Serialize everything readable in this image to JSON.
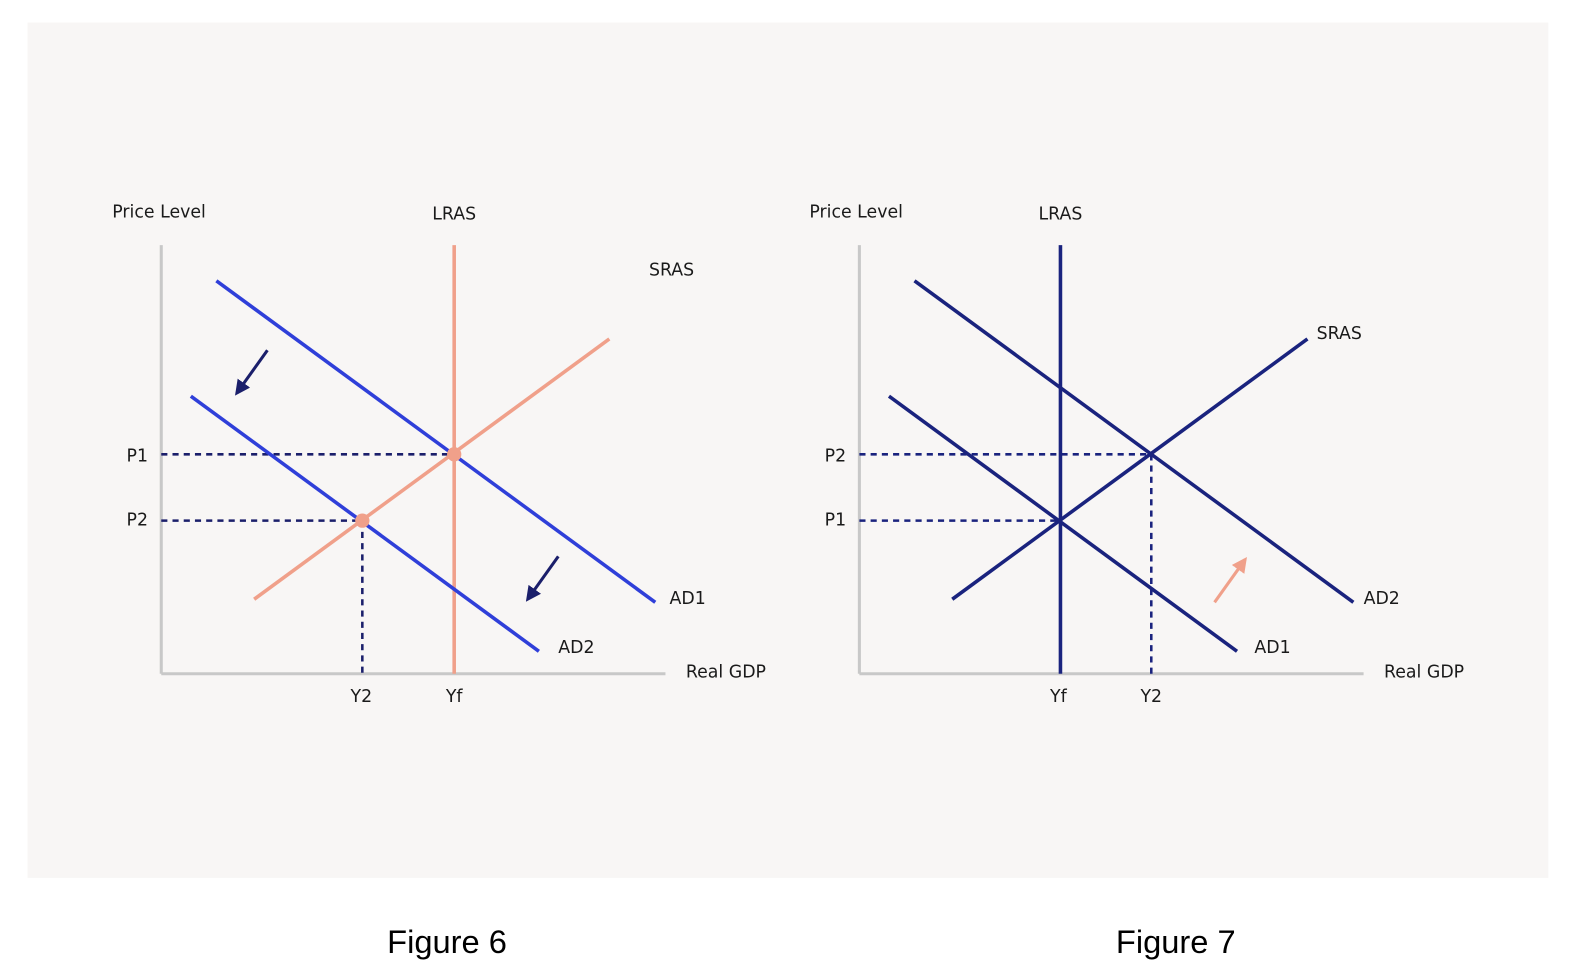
{
  "figures": [
    {
      "caption": "Figure 6",
      "y_axis_label": "Price Level",
      "x_axis_label": "Real GDP",
      "curves": {
        "lras": "LRAS",
        "sras": "SRAS",
        "ad1": "AD1",
        "ad2": "AD2"
      },
      "price_levels": [
        "P1",
        "P2"
      ],
      "outputs": [
        "Y2",
        "Yf"
      ]
    },
    {
      "caption": "Figure 7",
      "y_axis_label": "Price Level",
      "x_axis_label": "Real GDP",
      "curves": {
        "lras": "LRAS",
        "sras": "SRAS",
        "ad1": "AD1",
        "ad2": "AD2"
      },
      "price_levels": [
        "P2",
        "P1"
      ],
      "outputs": [
        "Yf",
        "Y2"
      ]
    }
  ]
}
